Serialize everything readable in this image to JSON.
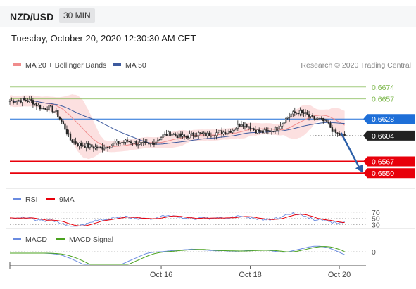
{
  "header": {
    "pair": "NZD/USD",
    "timeframe": "30 MIN",
    "datetime": "Tuesday, October 20, 2020 12:30:30 AM CET"
  },
  "legend": {
    "ma20_bb": "MA 20 + Bollinger Bands",
    "ma50": "MA 50",
    "research": "Research © 2020 Trading Central"
  },
  "colors": {
    "resistance": "#7ab648",
    "pivot": "#1e6fd8",
    "support": "#e8000b",
    "last": "#222222",
    "bollinger": "#fbd3d3",
    "ma20": "#f08c8c",
    "ma50": "#3d5a9e",
    "rsi": "#6a8be0",
    "nine_ma": "#e8000b",
    "macd": "#6a8be0",
    "macd_signal": "#4aa21e",
    "arrow": "#2b5fa8"
  },
  "chart_data": {
    "type": "candlestick",
    "instrument": "NZD/USD",
    "interval": "30 MIN",
    "ylim": [
      0.6532,
      0.669
    ],
    "x_ticks": [
      "Oct 16",
      "Oct 18",
      "Oct 20"
    ],
    "levels": [
      {
        "value": 0.6674,
        "label": "0.6674",
        "kind": "resistance"
      },
      {
        "value": 0.6657,
        "label": "0.6657",
        "kind": "resistance"
      },
      {
        "value": 0.6628,
        "label": "0.6628",
        "kind": "pivot"
      },
      {
        "value": 0.6604,
        "label": "0.6604",
        "kind": "last"
      },
      {
        "value": 0.6567,
        "label": "0.6567",
        "kind": "support"
      },
      {
        "value": 0.655,
        "label": "0.6550",
        "kind": "support"
      }
    ],
    "close_path": [
      [
        0,
        0.6654
      ],
      [
        6,
        0.6655
      ],
      [
        12,
        0.6654
      ],
      [
        18,
        0.6643
      ],
      [
        22,
        0.6645
      ],
      [
        26,
        0.6637
      ],
      [
        30,
        0.662
      ],
      [
        34,
        0.6598
      ],
      [
        38,
        0.6592
      ],
      [
        42,
        0.659
      ],
      [
        46,
        0.6588
      ],
      [
        50,
        0.6586
      ],
      [
        54,
        0.6588
      ],
      [
        58,
        0.6592
      ],
      [
        62,
        0.6594
      ],
      [
        66,
        0.6596
      ],
      [
        70,
        0.6594
      ],
      [
        74,
        0.6592
      ],
      [
        78,
        0.659
      ],
      [
        82,
        0.6596
      ],
      [
        86,
        0.6604
      ],
      [
        90,
        0.6607
      ],
      [
        94,
        0.6604
      ],
      [
        98,
        0.6602
      ],
      [
        102,
        0.6605
      ],
      [
        106,
        0.6607
      ],
      [
        110,
        0.6605
      ],
      [
        114,
        0.6607
      ],
      [
        118,
        0.6609
      ],
      [
        122,
        0.6609
      ],
      [
        126,
        0.6614
      ],
      [
        130,
        0.6622
      ],
      [
        134,
        0.6618
      ],
      [
        138,
        0.6611
      ],
      [
        142,
        0.6609
      ],
      [
        146,
        0.6611
      ],
      [
        150,
        0.6614
      ],
      [
        154,
        0.6626
      ],
      [
        158,
        0.6635
      ],
      [
        162,
        0.6638
      ],
      [
        166,
        0.6635
      ],
      [
        170,
        0.6629
      ],
      [
        174,
        0.6627
      ],
      [
        178,
        0.6623
      ],
      [
        182,
        0.6609
      ],
      [
        186,
        0.6604
      ],
      [
        188,
        0.6604
      ]
    ],
    "forecast_arrow": {
      "from": [
        186,
        0.6608
      ],
      "to": [
        198,
        0.6551
      ]
    },
    "rsi": {
      "levels": [
        70,
        50,
        30
      ],
      "labels": [
        "70",
        "50",
        "30"
      ],
      "series_names": [
        "RSI",
        "9MA"
      ]
    },
    "macd": {
      "levels": [
        0
      ],
      "labels": [
        "0"
      ],
      "series_names": [
        "MACD",
        "MACD Signal"
      ]
    }
  }
}
